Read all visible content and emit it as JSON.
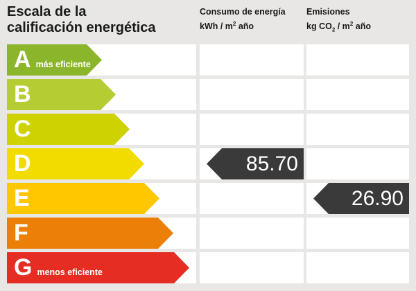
{
  "header": {
    "title": "Escala de la\ncalificación energética",
    "consumo": {
      "line1": "Consumo de energía",
      "unit_pre": "kWh / m",
      "unit_sup": "2",
      "unit_post": " año"
    },
    "emisiones": {
      "line1": "Emisiones",
      "unit_pre": "kg CO",
      "unit_sub": "2",
      "unit_mid": " / m",
      "unit_sup": "2",
      "unit_post": " año"
    }
  },
  "scale": {
    "ratings": [
      {
        "grade": "A",
        "note": "más eficiente",
        "color": "#8BB52B",
        "arrow_width": 137
      },
      {
        "grade": "B",
        "note": "",
        "color": "#B6CC33",
        "arrow_width": 157
      },
      {
        "grade": "C",
        "note": "",
        "color": "#CDD200",
        "arrow_width": 177
      },
      {
        "grade": "D",
        "note": "",
        "color": "#F2DC00",
        "arrow_width": 198
      },
      {
        "grade": "E",
        "note": "",
        "color": "#FFC700",
        "arrow_width": 220
      },
      {
        "grade": "F",
        "note": "",
        "color": "#EC7F08",
        "arrow_width": 240
      },
      {
        "grade": "G",
        "note": "menos eficiente",
        "color": "#E62D23",
        "arrow_width": 263
      }
    ]
  },
  "markers": [
    {
      "column": "consumo",
      "grade": "D",
      "value": "85.70",
      "color": "#3A3A3A"
    },
    {
      "column": "emisiones",
      "grade": "E",
      "value": "26.90",
      "color": "#3A3A3A"
    }
  ],
  "colors": {
    "background": "#E8E7E5",
    "cell": "#FFFFFF",
    "marker": "#3A3A3A",
    "text": "#1A1A1A"
  },
  "chart_data": {
    "type": "bar",
    "title": "Escala de la calificación energética",
    "categories": [
      "A",
      "B",
      "C",
      "D",
      "E",
      "F",
      "G"
    ],
    "bar_colors": [
      "#8BB52B",
      "#B6CC33",
      "#CDD200",
      "#F2DC00",
      "#FFC700",
      "#EC7F08",
      "#E62D23"
    ],
    "bar_relative_lengths": [
      137,
      157,
      177,
      198,
      220,
      240,
      263
    ],
    "annotations": [
      "A = más eficiente",
      "G = menos eficiente"
    ],
    "series": [
      {
        "name": "Consumo de energía kWh/m² año",
        "rating": "D",
        "value": 85.7
      },
      {
        "name": "Emisiones kg CO₂/m² año",
        "rating": "E",
        "value": 26.9
      }
    ],
    "legend_position": "top",
    "grid": false
  }
}
